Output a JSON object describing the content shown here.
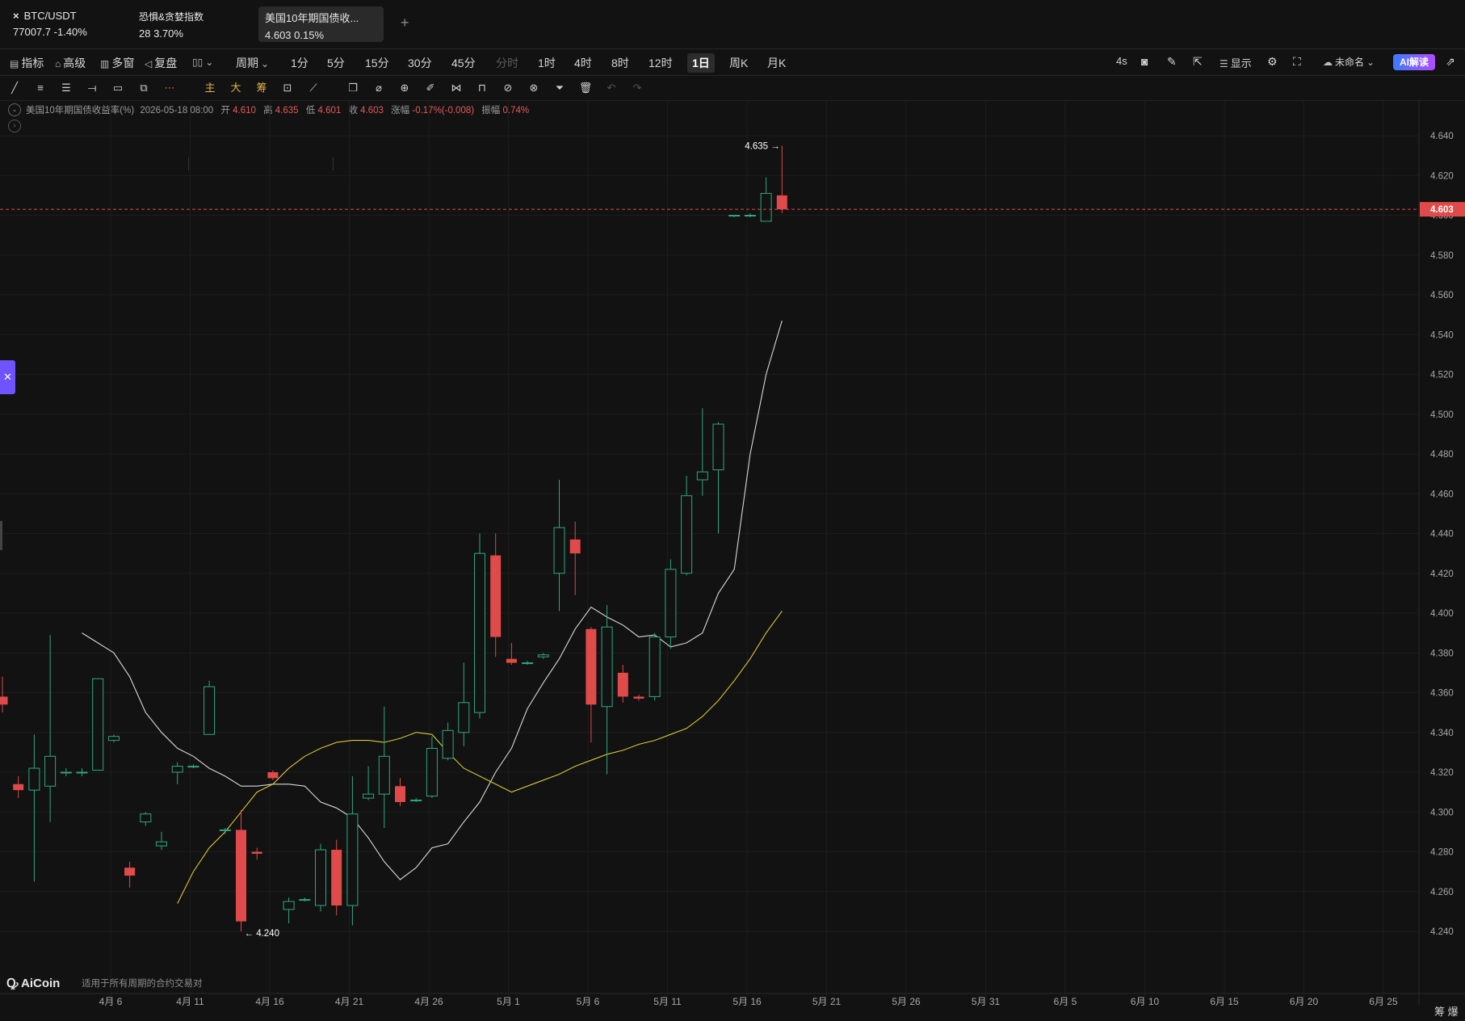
{
  "tabs": [
    {
      "title": "BTC/USDT",
      "close_icon": "×",
      "price": "77007.7",
      "change": "-1.40%"
    },
    {
      "title": "恐惧&贪婪指数",
      "price": "28",
      "change": "3.70%"
    },
    {
      "title": "美国10年期国债收...",
      "price": "4.603",
      "change": "0.15%",
      "active": true
    }
  ],
  "add_tab": "+",
  "toolbar": {
    "indicators": "指标",
    "advanced": "高级",
    "multi_window": "多窗",
    "replay": "复盘",
    "period": "周期",
    "intervals": [
      "1分",
      "5分",
      "15分",
      "30分",
      "45分",
      "分时",
      "1时",
      "4时",
      "8时",
      "12时",
      "1日",
      "周K",
      "月K"
    ],
    "selected_interval": "1日",
    "refresh": "4s",
    "display": "显示",
    "unnamed": "未命名",
    "ai": "AI解读"
  },
  "drawing_tools": {
    "main": "主",
    "big": "大",
    "chip": "筹"
  },
  "legend": {
    "name": "美国10年期国债收益率(%)",
    "datetime": "2026-05-18 08:00",
    "open_label": "开",
    "open": "4.610",
    "high_label": "高",
    "high": "4.635",
    "low_label": "低",
    "low": "4.601",
    "close_label": "收",
    "close": "4.603",
    "change_label": "涨幅",
    "change": "-0.17%(-0.008)",
    "amplitude_label": "振幅",
    "amplitude": "0.74%"
  },
  "watermark": {
    "brand": "AiCoin",
    "note": "适用于所有周期的合约交易对"
  },
  "bottom_right": "筹 爆",
  "colors": {
    "up": "#2ea87e",
    "down": "#e04a4a",
    "ma_short": "#d8d8d8",
    "ma_long": "#d9c53a",
    "background": "#121212"
  },
  "chart_data": {
    "type": "candlestick",
    "y_axis_ticks": [
      "4.640",
      "4.620",
      "4.600",
      "4.580",
      "4.560",
      "4.540",
      "4.520",
      "4.500",
      "4.480",
      "4.460",
      "4.440",
      "4.420",
      "4.400",
      "4.380",
      "4.360",
      "4.340",
      "4.320",
      "4.300",
      "4.280",
      "4.260",
      "4.240"
    ],
    "ylim": [
      4.222,
      4.645
    ],
    "x_axis_ticks": [
      "4月 6",
      "4月 11",
      "4月 16",
      "4月 21",
      "4月 26",
      "5月 1",
      "5月 6",
      "5月 11",
      "5月 16",
      "5月 21",
      "5月 26",
      "5月 31",
      "6月 5",
      "6月 10",
      "6月 15",
      "6月 20",
      "6月 25"
    ],
    "last_price_label": "4.603",
    "high_marker": "4.635",
    "low_marker": "4.240",
    "candles": [
      {
        "o": 4.358,
        "h": 4.368,
        "l": 4.35,
        "c": 4.354
      },
      {
        "o": 4.314,
        "h": 4.318,
        "l": 4.307,
        "c": 4.311
      },
      {
        "o": 4.311,
        "h": 4.339,
        "l": 4.265,
        "c": 4.322
      },
      {
        "o": 4.313,
        "h": 4.389,
        "l": 4.295,
        "c": 4.328
      },
      {
        "o": 4.32,
        "h": 4.322,
        "l": 4.318,
        "c": 4.32
      },
      {
        "o": 4.32,
        "h": 4.322,
        "l": 4.318,
        "c": 4.32
      },
      {
        "o": 4.321,
        "h": 4.367,
        "l": 4.321,
        "c": 4.367
      },
      {
        "o": 4.336,
        "h": 4.339,
        "l": 4.335,
        "c": 4.338
      },
      {
        "o": 4.272,
        "h": 4.275,
        "l": 4.262,
        "c": 4.268
      },
      {
        "o": 4.295,
        "h": 4.3,
        "l": 4.293,
        "c": 4.299
      },
      {
        "o": 4.283,
        "h": 4.29,
        "l": 4.281,
        "c": 4.285
      },
      {
        "o": 4.32,
        "h": 4.325,
        "l": 4.314,
        "c": 4.323
      },
      {
        "o": 4.323,
        "h": 4.324,
        "l": 4.322,
        "c": 4.323
      },
      {
        "o": 4.339,
        "h": 4.366,
        "l": 4.339,
        "c": 4.363
      },
      {
        "o": 4.291,
        "h": 4.292,
        "l": 4.289,
        "c": 4.291
      },
      {
        "o": 4.291,
        "h": 4.301,
        "l": 4.24,
        "c": 4.245
      },
      {
        "o": 4.28,
        "h": 4.282,
        "l": 4.276,
        "c": 4.279
      },
      {
        "o": 4.32,
        "h": 4.321,
        "l": 4.316,
        "c": 4.317
      },
      {
        "o": 4.251,
        "h": 4.257,
        "l": 4.244,
        "c": 4.255
      },
      {
        "o": 4.256,
        "h": 4.257,
        "l": 4.255,
        "c": 4.256
      },
      {
        "o": 4.253,
        "h": 4.284,
        "l": 4.25,
        "c": 4.281
      },
      {
        "o": 4.281,
        "h": 4.286,
        "l": 4.248,
        "c": 4.253
      },
      {
        "o": 4.253,
        "h": 4.318,
        "l": 4.243,
        "c": 4.299
      },
      {
        "o": 4.307,
        "h": 4.323,
        "l": 4.306,
        "c": 4.309
      },
      {
        "o": 4.309,
        "h": 4.353,
        "l": 4.292,
        "c": 4.328
      },
      {
        "o": 4.313,
        "h": 4.317,
        "l": 4.303,
        "c": 4.305
      },
      {
        "o": 4.306,
        "h": 4.307,
        "l": 4.305,
        "c": 4.306
      },
      {
        "o": 4.308,
        "h": 4.338,
        "l": 4.307,
        "c": 4.332
      },
      {
        "o": 4.327,
        "h": 4.345,
        "l": 4.326,
        "c": 4.341
      },
      {
        "o": 4.34,
        "h": 4.375,
        "l": 4.333,
        "c": 4.355
      },
      {
        "o": 4.35,
        "h": 4.44,
        "l": 4.347,
        "c": 4.43
      },
      {
        "o": 4.429,
        "h": 4.44,
        "l": 4.378,
        "c": 4.388
      },
      {
        "o": 4.377,
        "h": 4.385,
        "l": 4.374,
        "c": 4.375
      },
      {
        "o": 4.375,
        "h": 4.376,
        "l": 4.374,
        "c": 4.375
      },
      {
        "o": 4.378,
        "h": 4.38,
        "l": 4.377,
        "c": 4.379
      },
      {
        "o": 4.42,
        "h": 4.467,
        "l": 4.401,
        "c": 4.443
      },
      {
        "o": 4.437,
        "h": 4.446,
        "l": 4.409,
        "c": 4.43
      },
      {
        "o": 4.392,
        "h": 4.393,
        "l": 4.335,
        "c": 4.354
      },
      {
        "o": 4.353,
        "h": 4.404,
        "l": 4.319,
        "c": 4.393
      },
      {
        "o": 4.37,
        "h": 4.374,
        "l": 4.355,
        "c": 4.358
      },
      {
        "o": 4.358,
        "h": 4.359,
        "l": 4.356,
        "c": 4.357
      },
      {
        "o": 4.358,
        "h": 4.39,
        "l": 4.356,
        "c": 4.388
      },
      {
        "o": 4.388,
        "h": 4.427,
        "l": 4.382,
        "c": 4.422
      },
      {
        "o": 4.42,
        "h": 4.469,
        "l": 4.419,
        "c": 4.459
      },
      {
        "o": 4.467,
        "h": 4.503,
        "l": 4.459,
        "c": 4.471
      },
      {
        "o": 4.472,
        "h": 4.496,
        "l": 4.44,
        "c": 4.495
      },
      {
        "o": 4.6,
        "h": 4.6,
        "l": 4.599,
        "c": 4.6
      },
      {
        "o": 4.6,
        "h": 4.601,
        "l": 4.599,
        "c": 4.6
      },
      {
        "o": 4.597,
        "h": 4.619,
        "l": 4.597,
        "c": 4.611
      },
      {
        "o": 4.61,
        "h": 4.635,
        "l": 4.601,
        "c": 4.603
      }
    ],
    "series": [
      {
        "values": [
          4.39,
          4.385,
          4.38,
          4.368,
          4.35,
          4.34,
          4.332,
          4.328,
          4.322,
          4.318,
          4.313,
          4.313,
          4.314,
          4.314,
          4.313,
          4.305,
          4.302,
          4.297,
          4.287,
          4.275,
          4.266,
          4.272,
          4.282,
          4.284,
          4.295,
          4.305,
          4.32,
          4.332,
          4.352,
          4.365,
          4.377,
          4.392,
          4.403,
          4.398,
          4.394,
          4.388,
          4.389,
          4.383,
          4.385,
          4.39,
          4.41,
          4.422,
          4.48,
          4.52,
          4.547
        ]
      },
      {
        "values": [
          4.254,
          4.27,
          4.282,
          4.29,
          4.3,
          4.31,
          4.314,
          4.322,
          4.328,
          4.332,
          4.335,
          4.336,
          4.336,
          4.335,
          4.337,
          4.34,
          4.339,
          4.33,
          4.322,
          4.318,
          4.314,
          4.31,
          4.313,
          4.316,
          4.319,
          4.323,
          4.326,
          4.329,
          4.331,
          4.334,
          4.336,
          4.339,
          4.342,
          4.348,
          4.356,
          4.366,
          4.377,
          4.39,
          4.401
        ]
      }
    ]
  }
}
